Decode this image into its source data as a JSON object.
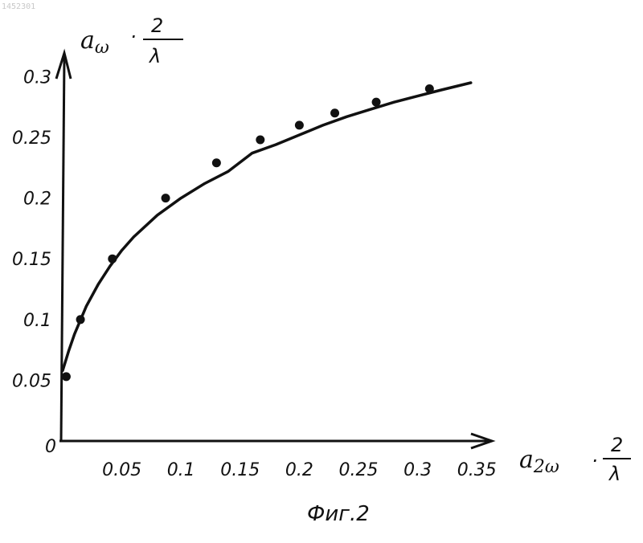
{
  "scan_id": "1452301",
  "caption": "Фиг.2",
  "y_axis": {
    "symbol": "a",
    "sub": "ω",
    "dot": "·",
    "numerator": "2",
    "denominator": "λ"
  },
  "x_axis": {
    "symbol": "a",
    "sub": "2ω",
    "dot": "·",
    "numerator": "2",
    "denominator": "λ"
  },
  "chart_data": {
    "type": "scatter",
    "origin_label": "0",
    "xlim": [
      0,
      0.35
    ],
    "ylim": [
      0,
      0.3
    ],
    "x_ticks": [
      "0.05",
      "0.1",
      "0.15",
      "0.2",
      "0.25",
      "0.3",
      "0.35"
    ],
    "y_ticks": [
      "0.05",
      "0.1",
      "0.15",
      "0.2",
      "0.25",
      "0.3"
    ],
    "grid": false,
    "series": [
      {
        "kind": "points",
        "x": [
          0.003,
          0.015,
          0.042,
          0.087,
          0.13,
          0.167,
          0.2,
          0.23,
          0.265,
          0.31
        ],
        "y": [
          0.053,
          0.1,
          0.15,
          0.2,
          0.229,
          0.248,
          0.26,
          0.27,
          0.279,
          0.29
        ]
      },
      {
        "kind": "curve",
        "x": [
          0.0,
          0.005,
          0.01,
          0.02,
          0.03,
          0.04,
          0.05,
          0.06,
          0.08,
          0.1,
          0.12,
          0.14,
          0.16,
          0.18,
          0.2,
          0.22,
          0.24,
          0.26,
          0.28,
          0.3,
          0.32,
          0.345
        ],
        "y": [
          0.058,
          0.074,
          0.088,
          0.111,
          0.129,
          0.144,
          0.157,
          0.168,
          0.186,
          0.2,
          0.212,
          0.222,
          0.237,
          0.244,
          0.252,
          0.26,
          0.267,
          0.273,
          0.279,
          0.284,
          0.289,
          0.295
        ]
      }
    ]
  }
}
